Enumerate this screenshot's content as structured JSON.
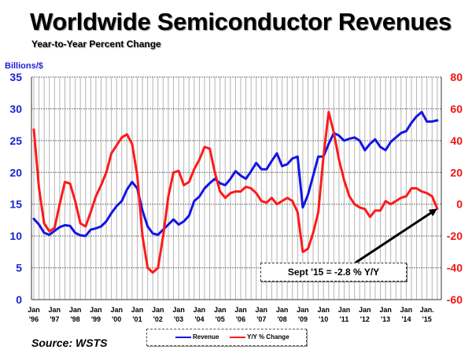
{
  "chart_data": {
    "type": "line",
    "title": "Worldwide Semiconductor Revenues",
    "subtitle": "Year-to-Year Percent Change",
    "ylabel": "Billions/$",
    "ylabel_right": "",
    "xlabel": "",
    "ylim": [
      0,
      35
    ],
    "ylim_right": [
      -60,
      80
    ],
    "yticks": [
      "0",
      "5",
      "10",
      "15",
      "20",
      "25",
      "30",
      "35"
    ],
    "yticks_right": [
      "-60",
      "-40",
      "-20",
      "0",
      "20",
      "40",
      "60",
      "80"
    ],
    "grid": true,
    "x_start": "Jan 1996",
    "x_step": "quarter",
    "xtick_labels": [
      [
        "Jan",
        "'96"
      ],
      [
        "Jan",
        "'97"
      ],
      [
        "Jan",
        "'98"
      ],
      [
        "Jan",
        "'99"
      ],
      [
        "Jan",
        "'00"
      ],
      [
        "Jan",
        "'01"
      ],
      [
        "Jan",
        "'02"
      ],
      [
        "Jan",
        "'03"
      ],
      [
        "Jan",
        "'04"
      ],
      [
        "Jan",
        "'05"
      ],
      [
        "Jan",
        "'06"
      ],
      [
        "Jan",
        "'07"
      ],
      [
        "Jan",
        "'08"
      ],
      [
        "Jan",
        "'09"
      ],
      [
        "Jan",
        "'10"
      ],
      [
        "Jan",
        "'11"
      ],
      [
        "Jan",
        "'12"
      ],
      [
        "Jan",
        "'13"
      ],
      [
        "Jan",
        "'14"
      ],
      [
        "Jan.",
        "'15"
      ]
    ],
    "series": [
      {
        "name": "Revenue",
        "axis": "left",
        "color": "#1414e6",
        "values": [
          12.7,
          11.8,
          10.5,
          10.2,
          10.8,
          11.4,
          11.7,
          11.6,
          10.5,
          10.1,
          10.0,
          11.0,
          11.2,
          11.5,
          12.3,
          13.6,
          14.7,
          15.5,
          17.3,
          18.5,
          17.5,
          14.0,
          11.5,
          10.4,
          10.2,
          11.0,
          11.8,
          12.6,
          11.8,
          12.3,
          13.2,
          15.5,
          16.2,
          17.5,
          18.3,
          19.0,
          18.3,
          18.0,
          19.0,
          20.2,
          19.5,
          19.0,
          20.2,
          21.5,
          20.5,
          20.5,
          21.8,
          23.0,
          21.0,
          21.3,
          22.2,
          22.5,
          14.5,
          16.5,
          19.5,
          22.5,
          22.5,
          24.5,
          26.2,
          25.8,
          25.0,
          25.3,
          25.5,
          25.0,
          23.5,
          24.5,
          25.2,
          24.0,
          23.5,
          24.8,
          25.5,
          26.2,
          26.5,
          27.8,
          28.8,
          29.5,
          28.0,
          28.0,
          28.2
        ]
      },
      {
        "name": "Y/Y % Change",
        "axis": "right",
        "color": "#ff1a1a",
        "values": [
          47,
          10,
          -12,
          -17,
          -15,
          0,
          14,
          13,
          2,
          -12,
          -14,
          -5,
          5,
          12,
          20,
          32,
          37,
          42,
          44,
          38,
          18,
          -20,
          -40,
          -43,
          -40,
          -20,
          5,
          20,
          21,
          12,
          14,
          22,
          28,
          36,
          35,
          20,
          8,
          4,
          7,
          8,
          8,
          11,
          10,
          7,
          2,
          1,
          4,
          0,
          2,
          4,
          2,
          -5,
          -30,
          -28,
          -18,
          -5,
          30,
          58,
          45,
          28,
          15,
          5,
          0,
          -2,
          -3,
          -8,
          -4,
          -4,
          2,
          0,
          2,
          4,
          5,
          10,
          10,
          8,
          7,
          5,
          -2.8
        ]
      }
    ],
    "legend": [
      "Revenue",
      "Y/Y % Change"
    ],
    "legend_position": "bottom-center",
    "annotations": [
      {
        "text": "Sept '15 = -2.8 % Y/Y",
        "points_to": "Sept 2015, -2.8 %"
      }
    ],
    "source": "Source: WSTS"
  }
}
